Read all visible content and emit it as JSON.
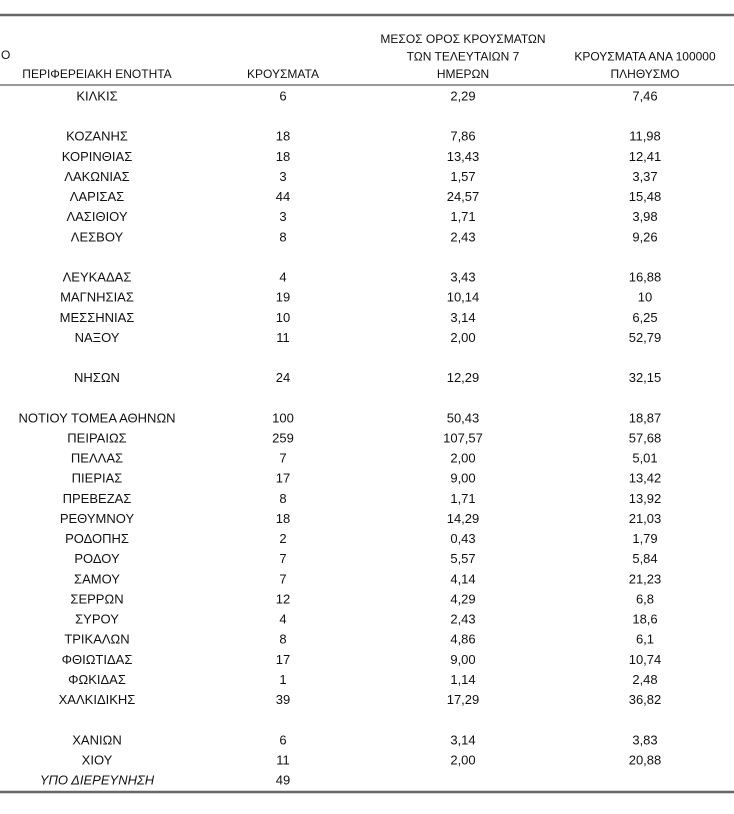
{
  "header": {
    "fragment": "Ο",
    "columns": [
      [
        "ΠΕΡΙΦΕΡΕΙΑΚΗ ΕΝΟΤΗΤΑ"
      ],
      [
        "ΚΡΟΥΣΜΑΤΑ"
      ],
      [
        "ΜΕΣΟΣ ΟΡΟΣ ΚΡΟΥΣΜΑΤΩΝ",
        "ΤΩΝ ΤΕΛΕΥΤΑΙΩΝ 7",
        "ΗΜΕΡΩΝ"
      ],
      [
        "ΚΡΟΥΣΜΑΤΑ ΑΝΑ 100000",
        "ΠΛΗΘΥΣΜΟ"
      ]
    ]
  },
  "table": {
    "groups": [
      [
        [
          "ΚΙΛΚΙΣ",
          "6",
          "2,29",
          "7,46"
        ]
      ],
      [
        [
          "ΚΟΖΑΝΗΣ",
          "18",
          "7,86",
          "11,98"
        ],
        [
          "ΚΟΡΙΝΘΙΑΣ",
          "18",
          "13,43",
          "12,41"
        ],
        [
          "ΛΑΚΩΝΙΑΣ",
          "3",
          "1,57",
          "3,37"
        ],
        [
          "ΛΑΡΙΣΑΣ",
          "44",
          "24,57",
          "15,48"
        ],
        [
          "ΛΑΣΙΘΙΟΥ",
          "3",
          "1,71",
          "3,98"
        ],
        [
          "ΛΕΣΒΟΥ",
          "8",
          "2,43",
          "9,26"
        ]
      ],
      [
        [
          "ΛΕΥΚΑΔΑΣ",
          "4",
          "3,43",
          "16,88"
        ],
        [
          "ΜΑΓΝΗΣΙΑΣ",
          "19",
          "10,14",
          "10"
        ],
        [
          "ΜΕΣΣΗΝΙΑΣ",
          "10",
          "3,14",
          "6,25"
        ],
        [
          "ΝΑΞΟΥ",
          "11",
          "2,00",
          "52,79"
        ]
      ],
      [
        [
          "ΝΗΣΩΝ",
          "24",
          "12,29",
          "32,15"
        ]
      ],
      [
        [
          "ΝΟΤΙΟΥ ΤΟΜΕΑ ΑΘΗΝΩΝ",
          "100",
          "50,43",
          "18,87"
        ],
        [
          "ΠΕΙΡΑΙΩΣ",
          "259",
          "107,57",
          "57,68"
        ],
        [
          "ΠΕΛΛΑΣ",
          "7",
          "2,00",
          "5,01"
        ],
        [
          "ΠΙΕΡΙΑΣ",
          "17",
          "9,00",
          "13,42"
        ],
        [
          "ΠΡΕΒΕΖΑΣ",
          "8",
          "1,71",
          "13,92"
        ],
        [
          "ΡΕΘΥΜΝΟΥ",
          "18",
          "14,29",
          "21,03"
        ],
        [
          "ΡΟΔΟΠΗΣ",
          "2",
          "0,43",
          "1,79"
        ],
        [
          "ΡΟΔΟΥ",
          "7",
          "5,57",
          "5,84"
        ],
        [
          "ΣΑΜΟΥ",
          "7",
          "4,14",
          "21,23"
        ],
        [
          "ΣΕΡΡΩΝ",
          "12",
          "4,29",
          "6,8"
        ],
        [
          "ΣΥΡΟΥ",
          "4",
          "2,43",
          "18,6"
        ],
        [
          "ΤΡΙΚΑΛΩΝ",
          "8",
          "4,86",
          "6,1"
        ],
        [
          "ΦΘΙΩΤΙΔΑΣ",
          "17",
          "9,00",
          "10,74"
        ],
        [
          "ΦΩΚΙΔΑΣ",
          "1",
          "1,14",
          "2,48"
        ],
        [
          "ΧΑΛΚΙΔΙΚΗΣ",
          "39",
          "17,29",
          "36,82"
        ]
      ],
      [
        [
          "ΧΑΝΙΩΝ",
          "6",
          "3,14",
          "3,83"
        ],
        [
          "ΧΙΟΥ",
          "11",
          "2,00",
          "20,88"
        ],
        [
          "ΥΠΟ ΔΙΕΡΕΥΝΗΣΗ",
          "49"
        ]
      ]
    ]
  }
}
